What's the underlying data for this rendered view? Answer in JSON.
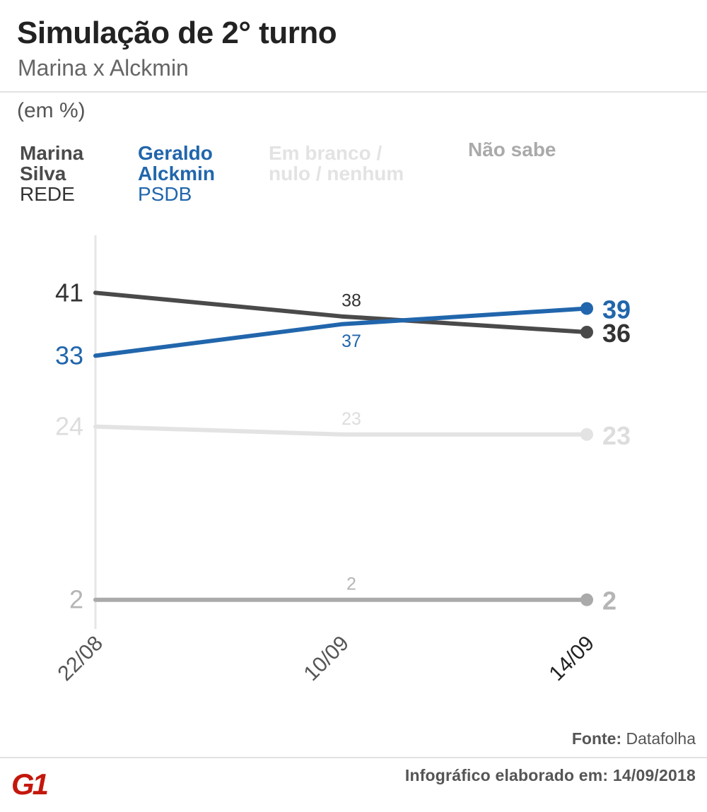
{
  "header": {
    "title": "Simulação de 2° turno",
    "subtitle": "Marina x Alckmin",
    "unit_label": "(em %)"
  },
  "legend": [
    {
      "name_line1": "Marina",
      "name_line2": "Silva",
      "party": "REDE",
      "color": "#4a4a4a"
    },
    {
      "name_line1": "Geraldo",
      "name_line2": "Alckmin",
      "party": "PSDB",
      "color": "#2166ac"
    },
    {
      "name_line1": "Em branco /",
      "name_line2": "nulo / nenhum",
      "party": "",
      "color": "#e3e3e3"
    },
    {
      "name_line1": "Não sabe",
      "name_line2": "",
      "party": "",
      "color": "#aaaaaa"
    }
  ],
  "chart_data": {
    "type": "line",
    "title": "Simulação de 2° turno",
    "subtitle": "Marina x Alckmin",
    "ylabel": "(em %)",
    "xlabel": "",
    "categories": [
      "22/08",
      "10/09",
      "14/09"
    ],
    "ylim": [
      0,
      50
    ],
    "grid": false,
    "series": [
      {
        "name": "Marina Silva (REDE)",
        "color": "#4a4a4a",
        "label_color": "#333333",
        "values": [
          41,
          38,
          36
        ],
        "labels": [
          "41",
          "38",
          "36"
        ]
      },
      {
        "name": "Geraldo Alckmin (PSDB)",
        "color": "#2166ac",
        "label_color": "#2166ac",
        "values": [
          33,
          37,
          39
        ],
        "labels": [
          "33",
          "37",
          "39"
        ]
      },
      {
        "name": "Em branco / nulo / nenhum",
        "color": "#e3e3e3",
        "label_color": "#dddddd",
        "values": [
          24,
          23,
          23
        ],
        "labels": [
          "24",
          "23",
          "23"
        ]
      },
      {
        "name": "Não sabe",
        "color": "#aaaaaa",
        "label_color": "#b5b5b5",
        "values": [
          2,
          2,
          2
        ],
        "labels": [
          "2",
          "2",
          "2"
        ]
      }
    ]
  },
  "footer": {
    "source_label": "Fonte:",
    "source_value": "Datafolha",
    "logo_text": "G1",
    "credit": "Infográfico elaborado em: 14/09/2018"
  }
}
